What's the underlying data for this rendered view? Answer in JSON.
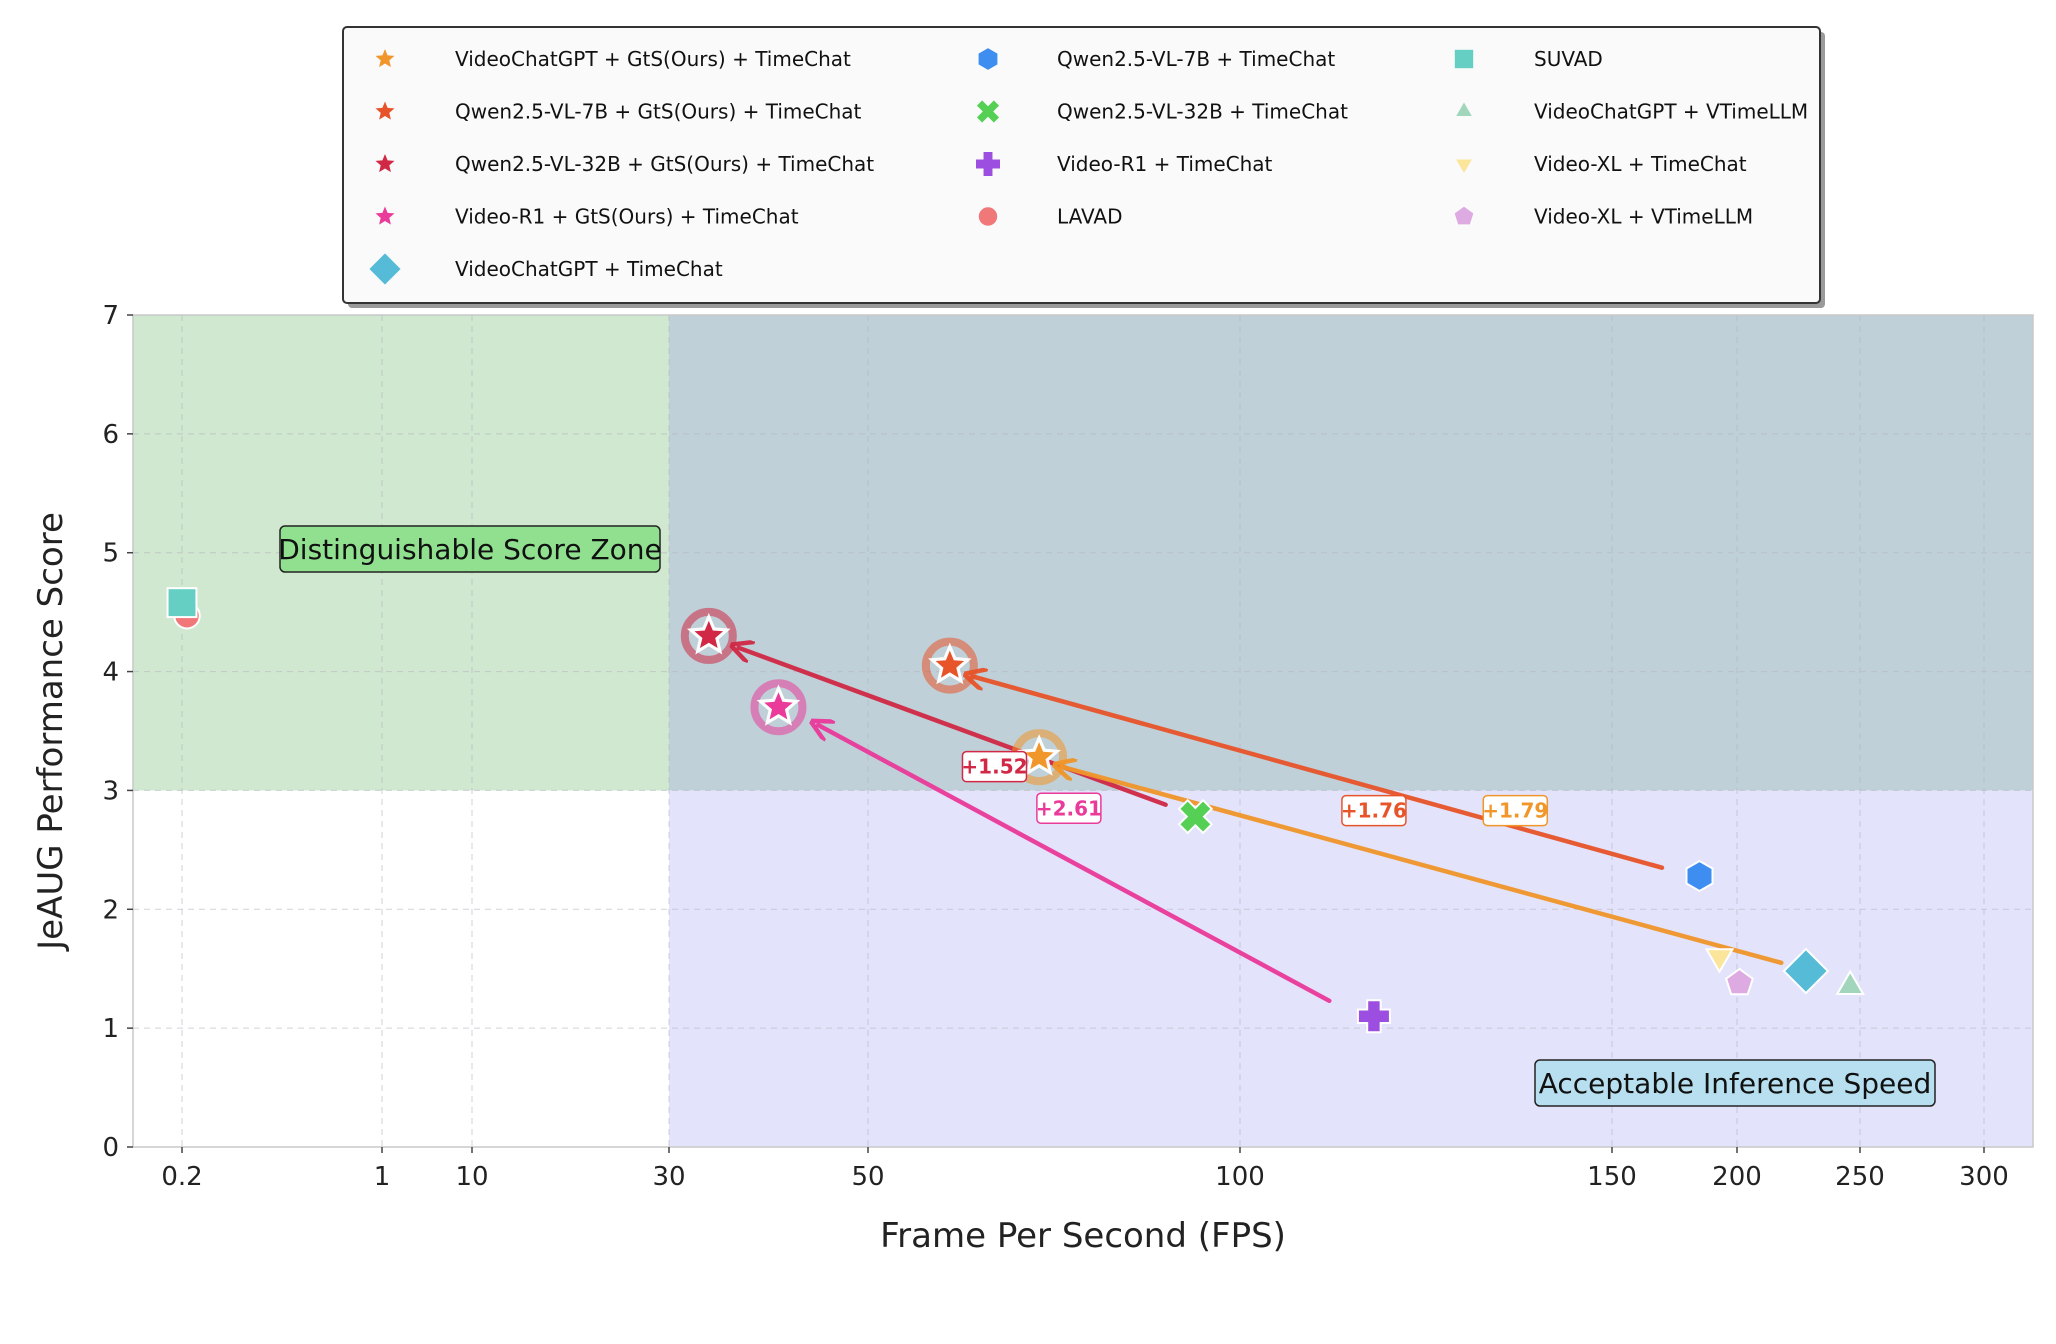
{
  "chart_data": {
    "type": "scatter",
    "xlabel": "Frame Per Second (FPS)",
    "ylabel": "JeAUG Performance Score",
    "x_scale": "piecewise",
    "x_ticks": [
      0.2,
      1,
      10,
      30,
      50,
      100,
      150,
      200,
      250,
      300
    ],
    "x_tick_labels": [
      "0.2",
      "1",
      "10",
      "30",
      "50",
      "100",
      "150",
      "200",
      "250",
      "300"
    ],
    "ylim": [
      0,
      7
    ],
    "y_ticks": [
      0,
      1,
      2,
      3,
      4,
      5,
      6,
      7
    ],
    "y_tick_labels": [
      "0",
      "1",
      "2",
      "3",
      "4",
      "5",
      "6",
      "7"
    ],
    "grid": true,
    "legend_position": "top",
    "zones": [
      {
        "name": "Distinguishable Score Zone",
        "label": "Distinguishable Score Zone",
        "x_range": [
          0.1,
          30
        ],
        "y_range": [
          3,
          7
        ],
        "color": "#cfe8cf"
      },
      {
        "name": "overlap",
        "label": "",
        "x_range": [
          30,
          320
        ],
        "y_range": [
          3,
          7
        ],
        "color": "#bfd0d8"
      },
      {
        "name": "Acceptable Inference Speed",
        "label": "Acceptable Inference Speed",
        "x_range": [
          30,
          320
        ],
        "y_range": [
          0,
          3
        ],
        "color": "#e3e3fb"
      }
    ],
    "series": [
      {
        "name": "VideoChatGPT + GtS(Ours) + TimeChat",
        "marker": "star",
        "color": "#f0962a",
        "x": 73,
        "y": 3.28,
        "highlight": true
      },
      {
        "name": "Qwen2.5-VL-7B + GtS(Ours) + TimeChat",
        "marker": "star",
        "color": "#e8542a",
        "x": 61,
        "y": 4.05,
        "highlight": true
      },
      {
        "name": "Qwen2.5-VL-32B + GtS(Ours) + TimeChat",
        "marker": "star",
        "color": "#d02845",
        "x": 34,
        "y": 4.3,
        "highlight": true
      },
      {
        "name": "Video-R1 + GtS(Ours) + TimeChat",
        "marker": "star",
        "color": "#ea3a9a",
        "x": 41,
        "y": 3.7,
        "highlight": true
      },
      {
        "name": "VideoChatGPT + TimeChat",
        "marker": "diamond",
        "color": "#55bbd6",
        "x": 228,
        "y": 1.48
      },
      {
        "name": "Qwen2.5-VL-7B + TimeChat",
        "marker": "hexagon",
        "color": "#3d8ef0",
        "x": 185,
        "y": 2.28
      },
      {
        "name": "Qwen2.5-VL-32B + TimeChat",
        "marker": "x",
        "color": "#55d055",
        "x": 94,
        "y": 2.78
      },
      {
        "name": "Video-R1 + TimeChat",
        "marker": "plus",
        "color": "#9b4ee0",
        "x": 118,
        "y": 1.1
      },
      {
        "name": "LAVAD",
        "marker": "circle",
        "color": "#f07878",
        "x": 0.22,
        "y": 4.47
      },
      {
        "name": "SUVAD",
        "marker": "square",
        "color": "#66cfc4",
        "x": 0.2,
        "y": 4.58
      },
      {
        "name": "VideoChatGPT + VTimeLLM",
        "marker": "triangle",
        "color": "#a2d6bc",
        "x": 246,
        "y": 1.35
      },
      {
        "name": "Video-XL + TimeChat",
        "marker": "triangle-down",
        "color": "#fbe59a",
        "x": 193,
        "y": 1.6
      },
      {
        "name": "Video-XL + VTimeLLM",
        "marker": "pentagon",
        "color": "#ddaae2",
        "x": 201,
        "y": 1.38
      }
    ],
    "annotations": [
      {
        "label": "+1.52",
        "color": "#d02845",
        "from_x": 90,
        "from_y": 2.88,
        "to_x": 37,
        "to_y": 4.2,
        "label_x": 67,
        "label_y": 3.2
      },
      {
        "label": "+2.61",
        "color": "#ea3a9a",
        "from_x": 112,
        "from_y": 1.23,
        "to_x": 45,
        "to_y": 3.55,
        "label_x": 77,
        "label_y": 2.85
      },
      {
        "label": "+1.76",
        "color": "#e8542a",
        "from_x": 170,
        "from_y": 2.35,
        "to_x": 64,
        "to_y": 3.96,
        "label_x": 118,
        "label_y": 2.83
      },
      {
        "label": "+1.79",
        "color": "#f0962a",
        "from_x": 218,
        "from_y": 1.55,
        "to_x": 76,
        "to_y": 3.2,
        "label_x": 137,
        "label_y": 2.83
      }
    ]
  }
}
